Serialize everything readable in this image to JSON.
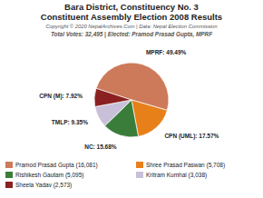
{
  "chart_data": {
    "type": "pie",
    "title": "Bara District, Constituency No. 3",
    "subtitle": "Constituent Assembly Election 2008 Results",
    "annotations": [
      "Copyright © 2020 NepalArchives.Com | Data: Nepal Election Commission",
      "Total Votes: 32,495 | Elected: Pramod Prasad Gupta, MPRF"
    ],
    "categories": [
      "MPRF",
      "CPN (UML)",
      "NC",
      "TMLP",
      "CPN (M)"
    ],
    "values": [
      49.49,
      17.57,
      15.68,
      9.35,
      7.92
    ],
    "value_labels": [
      "49.49%",
      "17.57%",
      "15.68%",
      "9.35%",
      "7.92%"
    ],
    "colors": [
      "#cd7a5a",
      "#e8801a",
      "#3a7d3a",
      "#c8c0d8",
      "#8b2020"
    ],
    "data_labels": true,
    "legend": "bottom",
    "legend_labels": [
      "Pramod Prasad Gupta (16,081)",
      "Shree Prasad Paswan (5,708)",
      "Rishikesh Gautam (5,095)",
      "Kritram Kumhal (3,038)",
      "Sheela Yadav (2,573)"
    ]
  }
}
